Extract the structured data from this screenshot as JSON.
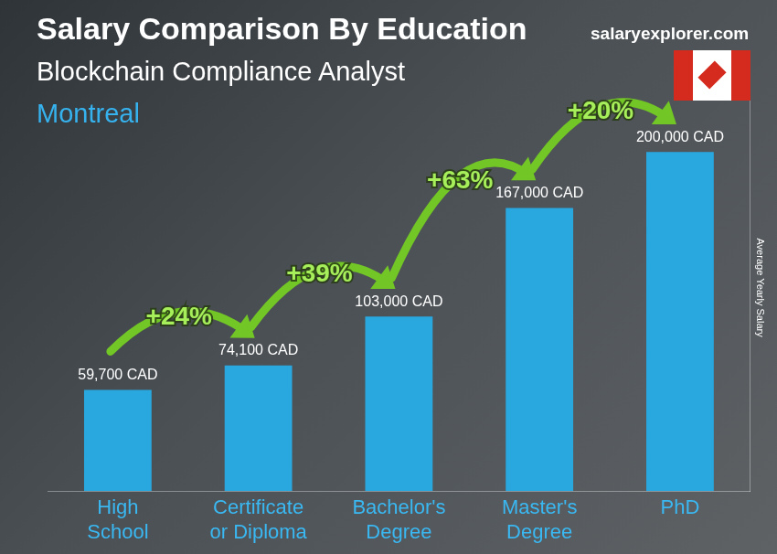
{
  "chart_data": {
    "type": "bar",
    "title": "Salary Comparison By Education",
    "subtitle": "Blockchain Compliance Analyst",
    "location": "Montreal",
    "source": "salaryexplorer.com",
    "y_label": "Average Yearly Salary",
    "categories": [
      "High School",
      "Certificate or Diploma",
      "Bachelor's Degree",
      "Master's Degree",
      "PhD"
    ],
    "values": [
      59700,
      74100,
      103000,
      167000,
      200000
    ],
    "value_labels": [
      "59,700 CAD",
      "74,100 CAD",
      "103,000 CAD",
      "167,000 CAD",
      "200,000 CAD"
    ],
    "data_labels": true,
    "annotations": [
      "+24%",
      "+39%",
      "+63%",
      "+20%"
    ],
    "color": "#29a8e0",
    "ylim": [
      0,
      240000
    ],
    "grid": false,
    "tick_labels": "x"
  }
}
